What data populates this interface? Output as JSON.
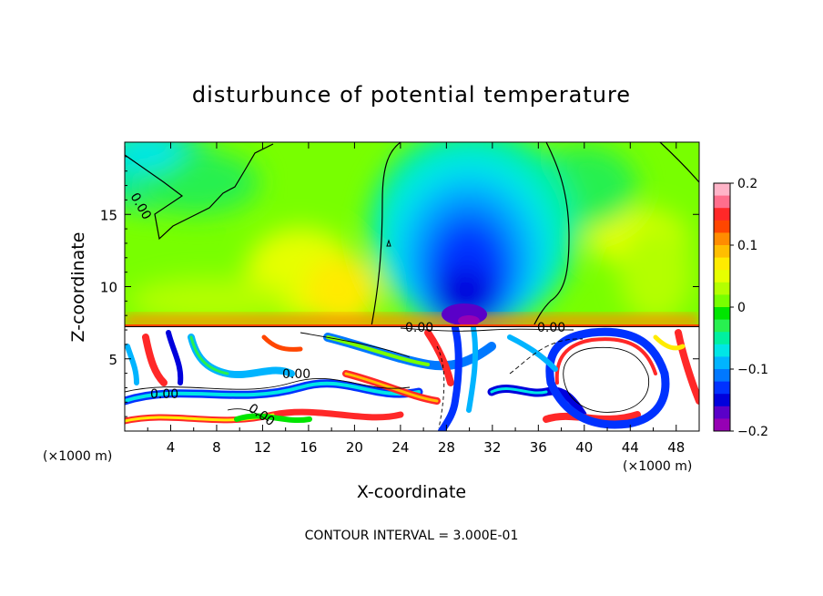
{
  "chart_data": {
    "type": "heatmap",
    "title": "disturbunce of potential temperature",
    "xlabel": "X-coordinate",
    "ylabel": "Z-coordinate",
    "x_unit": "(×1000 m)",
    "x_unit_right": "(×1000 m)",
    "footer": "CONTOUR INTERVAL = 3.000E-01",
    "xlim": [
      0,
      50
    ],
    "ylim": [
      0,
      20
    ],
    "x_ticks": [
      4,
      8,
      12,
      16,
      20,
      24,
      28,
      32,
      36,
      40,
      44,
      48
    ],
    "y_ticks": [
      5,
      10,
      15
    ],
    "colorbar": {
      "range": [
        -0.2,
        0.2
      ],
      "ticks": [
        0.2,
        0.1,
        0,
        -0.1,
        -0.2
      ],
      "tick_labels": [
        "0.2",
        "0.1",
        "0",
        "−0.1",
        "−0.2"
      ],
      "colors": [
        "#ffb4c8",
        "#ff6e8c",
        "#ff2828",
        "#ff4600",
        "#ff8c00",
        "#ffbe00",
        "#ffeb00",
        "#e6ff00",
        "#b4ff00",
        "#78ff00",
        "#00e600",
        "#28f050",
        "#00f0a0",
        "#00e6e6",
        "#00b4ff",
        "#0078ff",
        "#0032ff",
        "#0000dc",
        "#5a00c8",
        "#9600b4"
      ]
    },
    "contour_labels": [
      "0.00",
      "0.00",
      "0.00",
      "0.00",
      "0.00",
      "0.00"
    ],
    "contour_interval": 0.3
  }
}
